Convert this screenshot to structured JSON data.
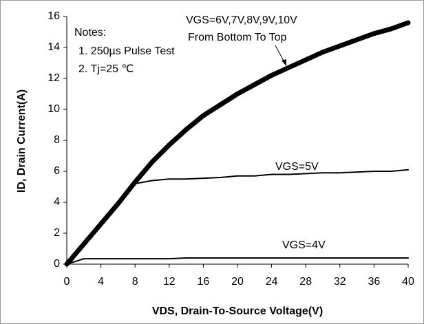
{
  "chart_data": {
    "type": "line",
    "x_label": "VDS,  Drain-To-Source Voltage(V)",
    "y_label": "ID,  Drain Current(A)",
    "x": [
      0,
      2,
      4,
      6,
      8,
      10,
      12,
      14,
      16,
      18,
      20,
      22,
      24,
      26,
      28,
      30,
      32,
      34,
      36,
      38,
      40
    ],
    "series": [
      {
        "name": "VGS=6V,7V,8V,9V,10V",
        "color": "#000000",
        "values": [
          0,
          1.3,
          2.6,
          3.9,
          5.3,
          6.6,
          7.7,
          8.7,
          9.6,
          10.3,
          11.0,
          11.6,
          12.2,
          12.7,
          13.2,
          13.7,
          14.1,
          14.5,
          14.9,
          15.2,
          15.6
        ]
      },
      {
        "name": "VGS=5V",
        "color": "#000000",
        "values": [
          0,
          1.3,
          2.6,
          3.9,
          5.2,
          5.4,
          5.5,
          5.5,
          5.55,
          5.6,
          5.7,
          5.7,
          5.8,
          5.8,
          5.85,
          5.9,
          5.9,
          5.95,
          6.0,
          6.0,
          6.1
        ]
      },
      {
        "name": "VGS=4V",
        "color": "#000000",
        "values": [
          0,
          0.35,
          0.35,
          0.35,
          0.35,
          0.35,
          0.35,
          0.4,
          0.4,
          0.4,
          0.4,
          0.4,
          0.4,
          0.4,
          0.4,
          0.4,
          0.4,
          0.4,
          0.4,
          0.4,
          0.4
        ]
      }
    ],
    "annotations": [
      "From Bottom To Top"
    ],
    "notes": [
      "Notes:",
      "1. 250µs  Pulse Test",
      "2. Tj=25 ℃"
    ],
    "xlim": [
      0,
      40
    ],
    "xticks": [
      0,
      4,
      8,
      12,
      16,
      20,
      24,
      28,
      32,
      36,
      40
    ],
    "ylim": [
      0,
      16
    ],
    "yticks": [
      0,
      2,
      4,
      6,
      8,
      10,
      12,
      14,
      16
    ],
    "grid": false
  }
}
